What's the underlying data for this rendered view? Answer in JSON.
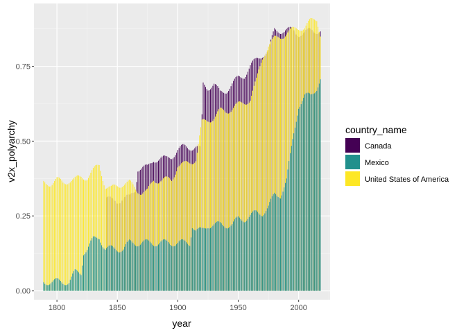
{
  "chart_data": {
    "type": "bar",
    "xlabel": "year",
    "ylabel": "v2x_polyarchy",
    "xlim": [
      1781,
      2026
    ],
    "ylim": [
      -0.03,
      0.96
    ],
    "x_ticks": [
      1800,
      1850,
      1900,
      1950,
      2000
    ],
    "x_tick_labels": [
      "1800",
      "1850",
      "1900",
      "1950",
      "2000"
    ],
    "y_ticks": [
      0,
      0.25,
      0.5,
      0.75
    ],
    "y_tick_labels": [
      "0.00",
      "0.25",
      "0.50",
      "0.75"
    ],
    "grid": true,
    "background": "#ebebeb",
    "legend": {
      "title": "country_name",
      "position": "right",
      "entries": [
        {
          "label": "Canada",
          "color": "#440154"
        },
        {
          "label": "Mexico",
          "color": "#21908c"
        },
        {
          "label": "United States of America",
          "color": "#fde725"
        }
      ]
    },
    "series": [
      {
        "name": "Canada",
        "color": "#440154",
        "x": [
          1841,
          1845,
          1850,
          1855,
          1860,
          1865,
          1867,
          1870,
          1875,
          1880,
          1885,
          1890,
          1895,
          1900,
          1905,
          1910,
          1915,
          1919,
          1921,
          1925,
          1930,
          1935,
          1940,
          1945,
          1950,
          1955,
          1960,
          1965,
          1970,
          1975,
          1980,
          1985,
          1990,
          1995,
          2000,
          2005,
          2010,
          2015,
          2018
        ],
        "values": [
          0.31,
          0.3,
          0.3,
          0.31,
          0.31,
          0.34,
          0.41,
          0.41,
          0.41,
          0.44,
          0.44,
          0.44,
          0.45,
          0.47,
          0.48,
          0.48,
          0.48,
          0.47,
          0.69,
          0.68,
          0.69,
          0.66,
          0.67,
          0.69,
          0.71,
          0.72,
          0.75,
          0.77,
          0.79,
          0.8,
          0.87,
          0.87,
          0.87,
          0.87,
          0.86,
          0.86,
          0.87,
          0.87,
          0.87
        ]
      },
      {
        "name": "Mexico",
        "color": "#21908c",
        "x": [
          1789,
          1800,
          1810,
          1815,
          1820,
          1822,
          1825,
          1830,
          1835,
          1840,
          1845,
          1850,
          1855,
          1860,
          1865,
          1870,
          1875,
          1880,
          1885,
          1890,
          1895,
          1900,
          1905,
          1910,
          1912,
          1915,
          1920,
          1925,
          1930,
          1935,
          1940,
          1945,
          1950,
          1955,
          1960,
          1965,
          1970,
          1975,
          1980,
          1985,
          1990,
          1995,
          2000,
          2005,
          2010,
          2015,
          2018
        ],
        "values": [
          0.03,
          0.03,
          0.03,
          0.06,
          0.06,
          0.13,
          0.14,
          0.17,
          0.18,
          0.14,
          0.14,
          0.14,
          0.14,
          0.16,
          0.16,
          0.16,
          0.16,
          0.16,
          0.16,
          0.16,
          0.16,
          0.16,
          0.16,
          0.16,
          0.22,
          0.2,
          0.2,
          0.22,
          0.22,
          0.22,
          0.22,
          0.22,
          0.24,
          0.24,
          0.25,
          0.26,
          0.26,
          0.28,
          0.32,
          0.32,
          0.37,
          0.5,
          0.62,
          0.65,
          0.65,
          0.68,
          0.71
        ]
      },
      {
        "name": "United States of America",
        "color": "#fde725",
        "x": [
          1789,
          1795,
          1800,
          1805,
          1810,
          1815,
          1820,
          1825,
          1830,
          1835,
          1840,
          1845,
          1850,
          1855,
          1860,
          1865,
          1870,
          1875,
          1880,
          1885,
          1890,
          1895,
          1900,
          1905,
          1910,
          1915,
          1920,
          1925,
          1930,
          1935,
          1940,
          1945,
          1950,
          1955,
          1960,
          1965,
          1970,
          1975,
          1980,
          1985,
          1990,
          1995,
          2000,
          2005,
          2010,
          2015,
          2018
        ],
        "values": [
          0.36,
          0.36,
          0.37,
          0.36,
          0.37,
          0.37,
          0.38,
          0.38,
          0.4,
          0.42,
          0.35,
          0.34,
          0.35,
          0.36,
          0.36,
          0.34,
          0.33,
          0.33,
          0.37,
          0.37,
          0.37,
          0.37,
          0.42,
          0.42,
          0.43,
          0.44,
          0.56,
          0.57,
          0.58,
          0.6,
          0.6,
          0.61,
          0.62,
          0.63,
          0.64,
          0.7,
          0.78,
          0.82,
          0.84,
          0.85,
          0.86,
          0.87,
          0.88,
          0.88,
          0.9,
          0.91,
          0.86
        ]
      }
    ]
  }
}
